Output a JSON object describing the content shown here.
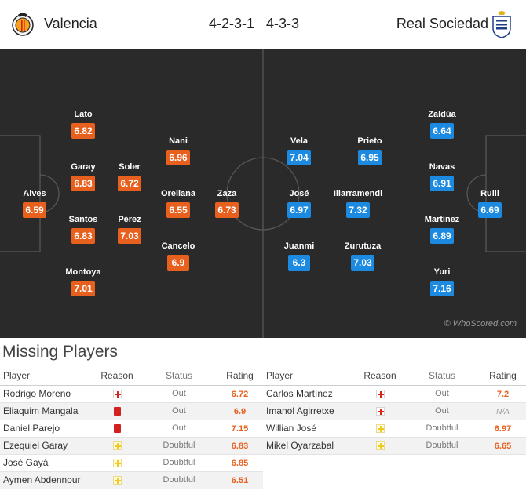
{
  "match": {
    "home": {
      "name": "Valencia",
      "formation": "4-2-3-1"
    },
    "away": {
      "name": "Real Sociedad",
      "formation": "4-3-3"
    }
  },
  "pitch": {
    "watermark": "© WhoScored.com",
    "home_players": [
      {
        "name": "Lato",
        "rating": "6.82"
      },
      {
        "name": "Garay",
        "rating": "6.83"
      },
      {
        "name": "Soler",
        "rating": "6.72"
      },
      {
        "name": "Alves",
        "rating": "6.59"
      },
      {
        "name": "Santos",
        "rating": "6.83"
      },
      {
        "name": "Pérez",
        "rating": "7.03"
      },
      {
        "name": "Montoya",
        "rating": "7.01"
      },
      {
        "name": "Nani",
        "rating": "6.96"
      },
      {
        "name": "Orellana",
        "rating": "6.55"
      },
      {
        "name": "Zaza",
        "rating": "6.73"
      },
      {
        "name": "Cancelo",
        "rating": "6.9"
      }
    ],
    "away_players": [
      {
        "name": "Vela",
        "rating": "7.04"
      },
      {
        "name": "Prieto",
        "rating": "6.95"
      },
      {
        "name": "José",
        "rating": "6.97"
      },
      {
        "name": "Illarramendi",
        "rating": "7.32"
      },
      {
        "name": "Juanmi",
        "rating": "6.3"
      },
      {
        "name": "Zurutuza",
        "rating": "7.03"
      },
      {
        "name": "Zaldúa",
        "rating": "6.64"
      },
      {
        "name": "Navas",
        "rating": "6.91"
      },
      {
        "name": "Rulli",
        "rating": "6.69"
      },
      {
        "name": "Martínez",
        "rating": "6.89"
      },
      {
        "name": "Yuri",
        "rating": "7.16"
      }
    ]
  },
  "missing": {
    "title": "Missing Players",
    "columns": {
      "player": "Player",
      "reason": "Reason",
      "status": "Status",
      "rating": "Rating"
    },
    "home": [
      {
        "player": "Rodrigo Moreno",
        "reason": "injury",
        "status": "Out",
        "rating": "6.72"
      },
      {
        "player": "Eliaquim Mangala",
        "reason": "red-card",
        "status": "Out",
        "rating": "6.9"
      },
      {
        "player": "Daniel Parejo",
        "reason": "red-card",
        "status": "Out",
        "rating": "7.15"
      },
      {
        "player": "Ezequiel Garay",
        "reason": "doubtful",
        "status": "Doubtful",
        "rating": "6.83"
      },
      {
        "player": "José Gayá",
        "reason": "doubtful",
        "status": "Doubtful",
        "rating": "6.85"
      },
      {
        "player": "Aymen Abdennour",
        "reason": "doubtful",
        "status": "Doubtful",
        "rating": "6.51"
      }
    ],
    "away": [
      {
        "player": "Carlos Martínez",
        "reason": "injury",
        "status": "Out",
        "rating": "7.2"
      },
      {
        "player": "Imanol Agirretxe",
        "reason": "injury",
        "status": "Out",
        "rating": "N/A"
      },
      {
        "player": "Willian José",
        "reason": "doubtful",
        "status": "Doubtful",
        "rating": "6.97"
      },
      {
        "player": "Mikel Oyarzabal",
        "reason": "doubtful",
        "status": "Doubtful",
        "rating": "6.65"
      }
    ]
  },
  "colors": {
    "home_rating": "#e8601e",
    "away_rating": "#1b8ae0",
    "pitch": "#2a2a2a"
  }
}
